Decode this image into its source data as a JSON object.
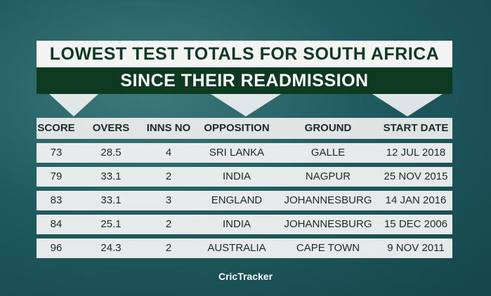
{
  "header": {
    "title": "LOWEST TEST TOTALS FOR SOUTH AFRICA",
    "subtitle": "SINCE THEIR READMISSION"
  },
  "table": {
    "columns": [
      "SCORE",
      "OVERS",
      "INNS NO",
      "OPPOSITION",
      "GROUND",
      "START DATE"
    ],
    "rows": [
      [
        73,
        28.5,
        4,
        "SRI LANKA",
        "GALLE",
        "12 JUL 2018"
      ],
      [
        79,
        33.1,
        2,
        "INDIA",
        "NAGPUR",
        "25 NOV 2015"
      ],
      [
        83,
        33.1,
        3,
        "ENGLAND",
        "JOHANNESBURG",
        "14 JAN 2016"
      ],
      [
        84,
        25.1,
        2,
        "INDIA",
        "JOHANNESBURG",
        "15 DEC 2006"
      ],
      [
        96,
        24.3,
        2,
        "AUSTRALIA",
        "CAPE TOWN",
        "9 NOV 2011"
      ]
    ]
  },
  "footer": {
    "brand": "CricTracker"
  }
}
